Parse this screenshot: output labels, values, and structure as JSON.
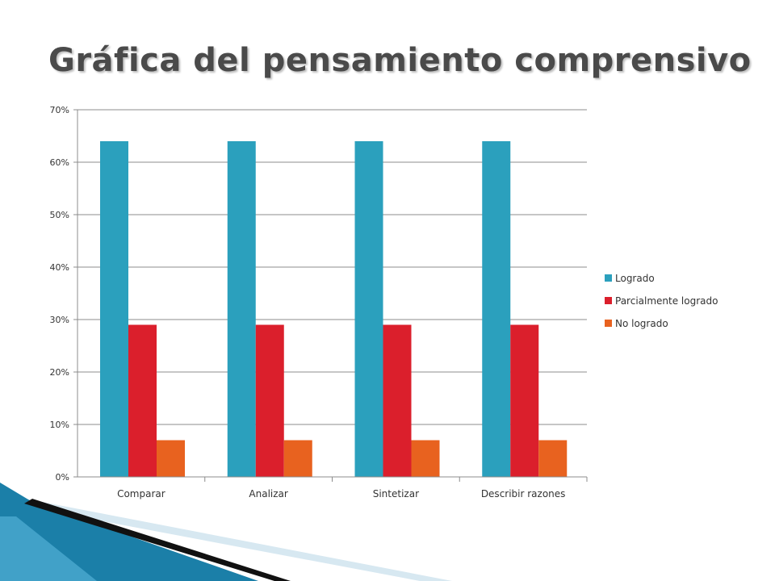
{
  "slide": {
    "title": "Gráfica del pensamiento comprensivo"
  },
  "chart_data": {
    "type": "bar",
    "title": "",
    "xlabel": "",
    "ylabel": "",
    "categories": [
      "Comparar",
      "Analizar",
      "Sintetizar",
      "Describir razones"
    ],
    "series": [
      {
        "name": "Logrado",
        "values": [
          0.64,
          0.64,
          0.64,
          0.64
        ],
        "color": "#2ba0bd"
      },
      {
        "name": "Parcialmente logrado",
        "values": [
          0.29,
          0.29,
          0.29,
          0.29
        ],
        "color": "#db1f2c"
      },
      {
        "name": "No logrado",
        "values": [
          0.07,
          0.07,
          0.07,
          0.07
        ],
        "color": "#e8621f"
      }
    ],
    "ylim": [
      0,
      0.7
    ],
    "yticks": [
      "0%",
      "10%",
      "20%",
      "30%",
      "40%",
      "50%",
      "60%",
      "70%"
    ],
    "grid": true,
    "legend_position": "right"
  },
  "colors": {
    "title_text": "#4a4a4a",
    "grid": "#8c8c8c",
    "decoration_blue": "#1b7fa8",
    "decoration_light": "#cfe3ee",
    "decoration_dark": "#111111"
  }
}
